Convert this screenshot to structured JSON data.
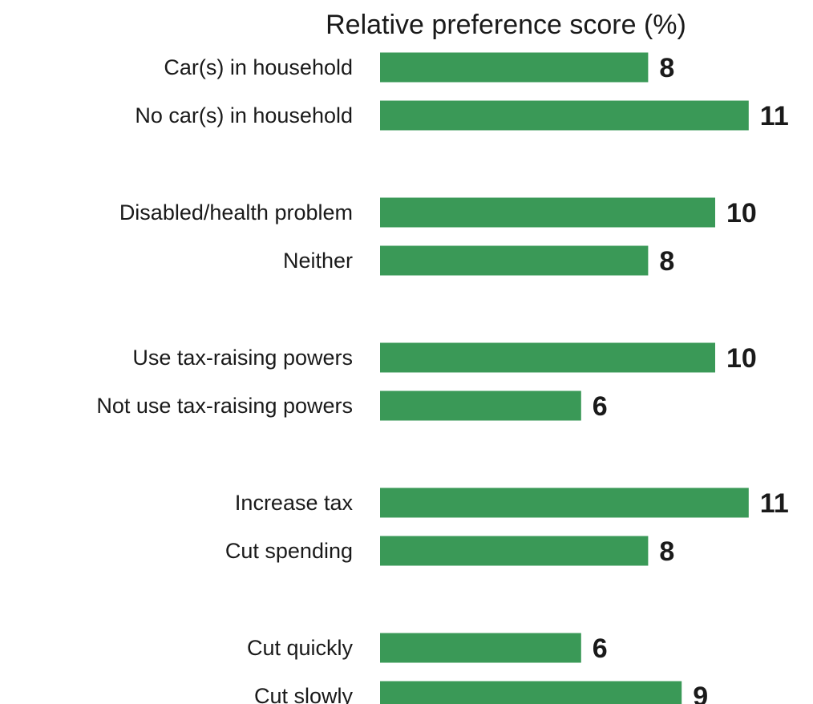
{
  "chart_data": {
    "type": "bar",
    "orientation": "horizontal",
    "title": "Relative preference score (%)",
    "xlabel": "",
    "ylabel": "",
    "xlim": [
      0,
      11
    ],
    "grid": false,
    "bar_color": "#3a9957",
    "categories": [
      "Car(s) in household",
      "No car(s) in household",
      "Disabled/health problem",
      "Neither",
      "Use tax-raising powers",
      "Not use tax-raising powers",
      "Increase tax",
      "Cut spending",
      "Cut quickly",
      "Cut slowly"
    ],
    "values": [
      8,
      11,
      10,
      8,
      10,
      6,
      11,
      8,
      6,
      9
    ],
    "value_labels": [
      "8",
      "11",
      "10",
      "8",
      "10",
      "6",
      "11",
      "8",
      "6",
      "9"
    ],
    "groups": [
      [
        "Car(s) in household",
        "No car(s) in household"
      ],
      [
        "Disabled/health problem",
        "Neither"
      ],
      [
        "Use tax-raising powers",
        "Not use tax-raising powers"
      ],
      [
        "Increase tax",
        "Cut spending"
      ],
      [
        "Cut quickly",
        "Cut slowly"
      ]
    ]
  }
}
